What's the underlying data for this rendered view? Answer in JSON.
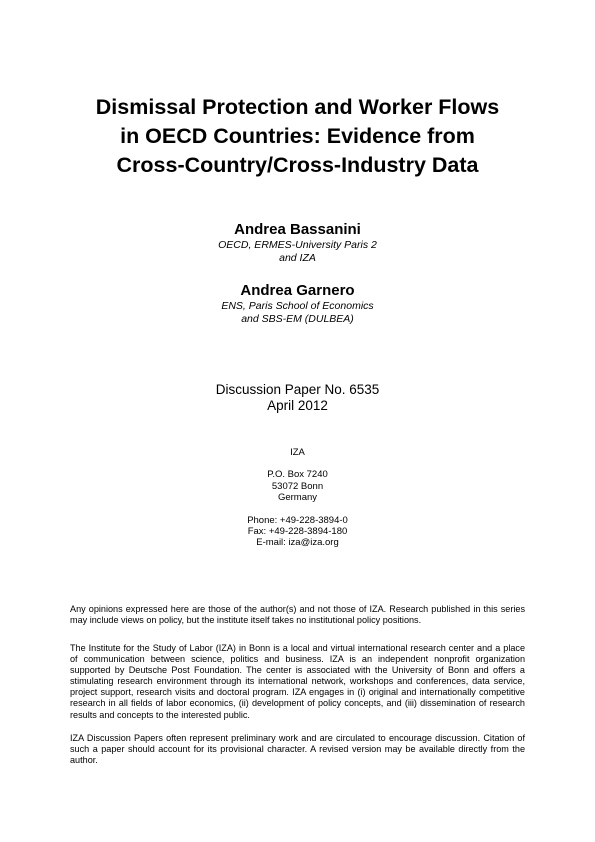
{
  "title": {
    "lines": [
      "Dismissal Protection and Worker Flows",
      "in OECD Countries: Evidence from",
      "Cross-Country/Cross-Industry Data"
    ]
  },
  "authors": [
    {
      "name": "Andrea Bassanini",
      "affiliation": [
        "OECD, ERMES-University Paris 2",
        "and IZA"
      ]
    },
    {
      "name": "Andrea Garnero",
      "affiliation": [
        "ENS, Paris School of Economics",
        "and SBS-EM (DULBEA)"
      ]
    }
  ],
  "paper": {
    "number": "Discussion Paper No. 6535",
    "date": "April 2012"
  },
  "institute": {
    "name": "IZA",
    "address": [
      "P.O. Box 7240",
      "53072 Bonn",
      "Germany"
    ],
    "phone": "Phone: +49-228-3894-0",
    "fax": "Fax: +49-228-3894-180",
    "email": "E-mail: iza@iza.org"
  },
  "disclaimers": [
    "Any opinions expressed here are those of the author(s) and not those of IZA. Research published in this series may include views on policy, but the institute itself takes no institutional policy positions.",
    "The Institute for the Study of Labor (IZA) in Bonn is a local and virtual international research center and a place of communication between science, politics and business. IZA is an independent nonprofit organization supported by Deutsche Post Foundation. The center is associated with the University of Bonn and offers a stimulating research environment through its international network, workshops and conferences, data service, project support, research visits and doctoral program. IZA engages in (i) original and internationally competitive research in all fields of labor economics, (ii) development of policy concepts, and (iii) dissemination of research results and concepts to the interested public.",
    "IZA Discussion Papers often represent preliminary work and are circulated to encourage discussion. Citation of such a paper should account for its provisional character. A revised version may be available directly from the author."
  ]
}
